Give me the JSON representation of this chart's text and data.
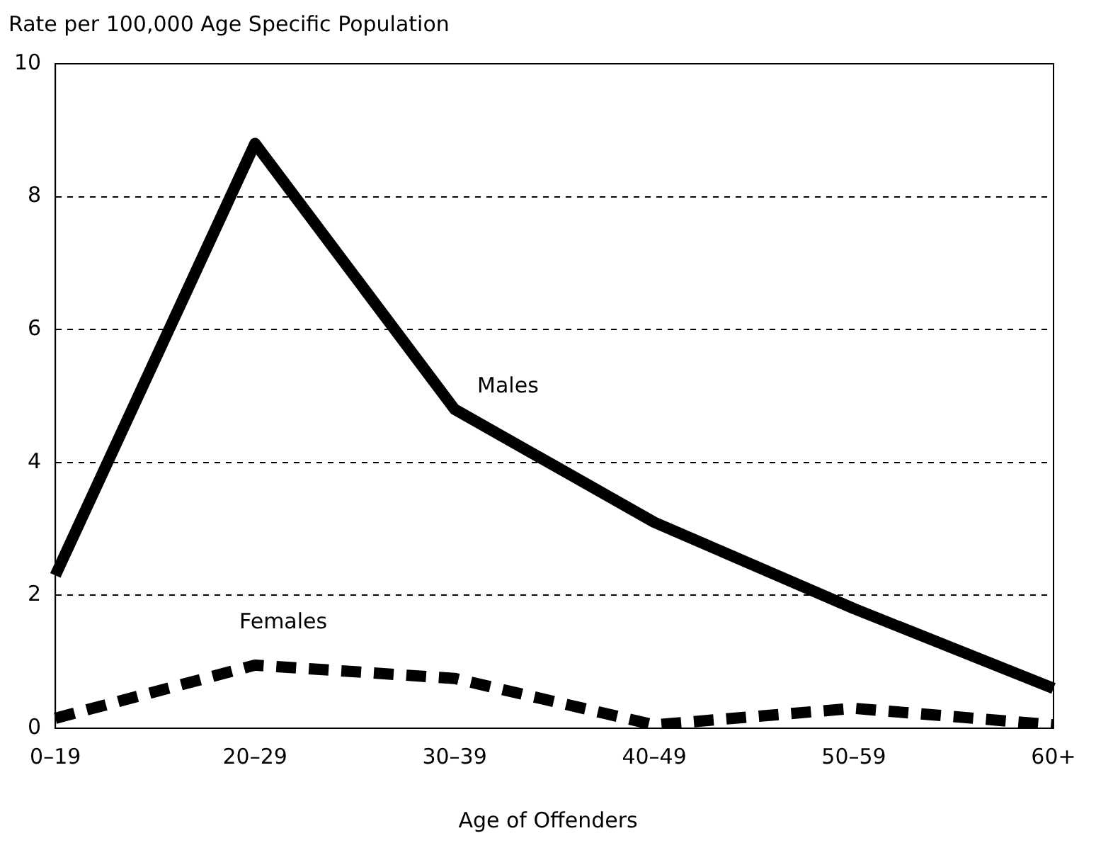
{
  "chart_data": {
    "type": "line",
    "ylabel": "Rate per 100,000 Age Specific Population",
    "xlabel": "Age of Offenders",
    "categories": [
      "0–19",
      "20–29",
      "30–39",
      "40–49",
      "50–59",
      "60+"
    ],
    "series": [
      {
        "name": "Males",
        "color": "#000000",
        "line_style": "solid",
        "values": [
          2.3,
          8.8,
          4.8,
          3.1,
          1.8,
          0.6
        ]
      },
      {
        "name": "Females",
        "color": "#000000",
        "line_style": "dashed",
        "values": [
          0.15,
          0.95,
          0.75,
          0.05,
          0.3,
          0.05
        ]
      }
    ],
    "ylim": [
      0,
      10
    ],
    "yticks": [
      0,
      2,
      4,
      6,
      8,
      10
    ],
    "grid": "y",
    "legend": false,
    "marker": "none"
  }
}
